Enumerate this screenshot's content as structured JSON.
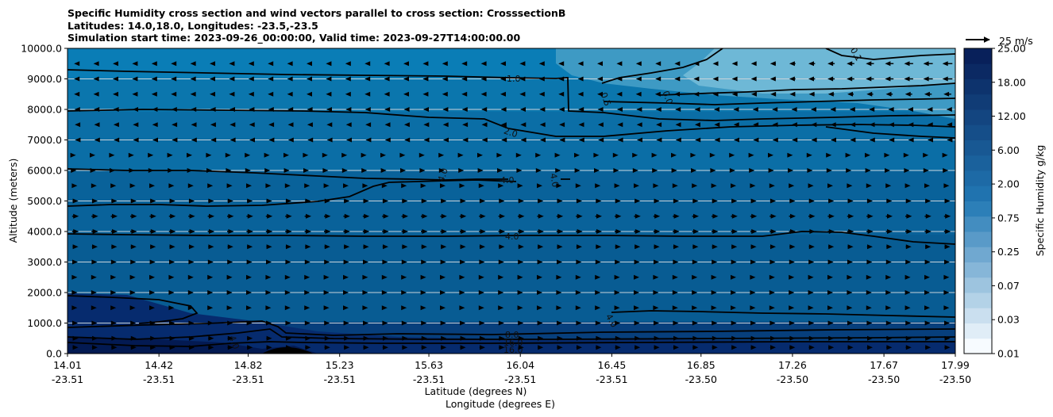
{
  "chart_data": {
    "type": "filled-contour-cross-section",
    "title_lines": [
      "Specific Humidity cross section and wind vectors parallel to cross section: CrosssectionB",
      "Latitudes: 14.0,18.0, Longitudes: -23.5,-23.5",
      "Simulation start time: 2023-09-26_00:00:00, Valid time: 2023-09-27T14:00:00.00"
    ],
    "ylabel": "Altitude (meters)",
    "xlabel_lat": "Latitude (degrees N)",
    "xlabel_lon": "Longitude (degrees E)",
    "ylim": [
      0,
      10000
    ],
    "y_ticks": [
      {
        "value": 0,
        "label": "0.0"
      },
      {
        "value": 1000,
        "label": "1000.0"
      },
      {
        "value": 2000,
        "label": "2000.0"
      },
      {
        "value": 3000,
        "label": "3000.0"
      },
      {
        "value": 4000,
        "label": "4000.0"
      },
      {
        "value": 5000,
        "label": "5000.0"
      },
      {
        "value": 6000,
        "label": "6000.0"
      },
      {
        "value": 7000,
        "label": "7000.0"
      },
      {
        "value": 8000,
        "label": "8000.0"
      },
      {
        "value": 9000,
        "label": "9000.0"
      },
      {
        "value": 10000,
        "label": "10000.0"
      }
    ],
    "x_ticks": [
      {
        "lat": "14.01",
        "lon": "-23.51"
      },
      {
        "lat": "14.42",
        "lon": "-23.51"
      },
      {
        "lat": "14.82",
        "lon": "-23.51"
      },
      {
        "lat": "15.23",
        "lon": "-23.51"
      },
      {
        "lat": "15.63",
        "lon": "-23.51"
      },
      {
        "lat": "16.04",
        "lon": "-23.51"
      },
      {
        "lat": "16.45",
        "lon": "-23.51"
      },
      {
        "lat": "16.85",
        "lon": "-23.50"
      },
      {
        "lat": "17.26",
        "lon": "-23.50"
      },
      {
        "lat": "17.67",
        "lon": "-23.50"
      },
      {
        "lat": "17.99",
        "lon": "-23.50"
      }
    ],
    "colorbar": {
      "label": "Specific Humidity g/kg",
      "tick_labels": [
        "0.01",
        "0.03",
        "0.07",
        "0.25",
        "0.75",
        "2.00",
        "6.00",
        "12.00",
        "18.00",
        "25.00"
      ],
      "n_levels": 20,
      "low_color": "#f7fbff",
      "high_color": "#08205a"
    },
    "contour_labels": [
      "1.0",
      "0.5",
      "0.0",
      "0.1",
      "2.0",
      "4.0",
      "4.0",
      "4.0",
      "4.0",
      "4.0",
      "4.0",
      "8.0",
      "16.0",
      "16.0"
    ],
    "quiver_key": {
      "label": "25 m/s",
      "speed": 25
    },
    "wind_field": {
      "columns": 46,
      "levels_m": [
        200,
        500,
        1000,
        1500,
        2000,
        2500,
        3000,
        3500,
        4000,
        4500,
        5000,
        5500,
        6000,
        6500,
        7000,
        7500,
        8000,
        8500,
        9000,
        9500
      ],
      "speed_at_level_ms": [
        6,
        6,
        5,
        4,
        4,
        4,
        5,
        6,
        7,
        7,
        6,
        4,
        2,
        1,
        -1,
        -1.5,
        -2,
        -3,
        -3,
        -3
      ]
    }
  }
}
